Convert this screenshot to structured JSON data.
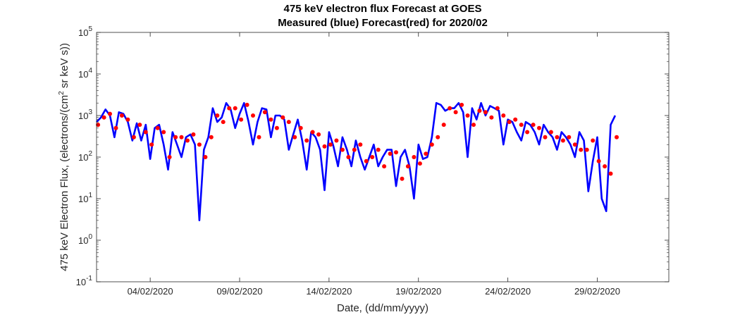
{
  "chart_data": {
    "type": "line",
    "title": "475 keV electron flux Forecast at GOES",
    "subtitle": "Measured (blue) Forecast(red) for 2020/02",
    "xlabel": "Date, (dd/mm/yyyy)",
    "ylabel_main": "475 keV Electron Flux, (electrons/(cm",
    "ylabel_sup": "2",
    "ylabel_tail": " sr keV s))",
    "yscale": "log",
    "ylim": [
      0.1,
      100000
    ],
    "xlim": [
      "2020-02-01",
      "2020-03-04"
    ],
    "x_ticks": [
      "04/02/2020",
      "09/02/2020",
      "14/02/2020",
      "19/02/2020",
      "24/02/2020",
      "29/02/2020"
    ],
    "y_ticks": [
      {
        "base": "10",
        "exp": "-1"
      },
      {
        "base": "10",
        "exp": "0"
      },
      {
        "base": "10",
        "exp": "1"
      },
      {
        "base": "10",
        "exp": "2"
      },
      {
        "base": "10",
        "exp": "3"
      },
      {
        "base": "10",
        "exp": "4"
      },
      {
        "base": "10",
        "exp": "5"
      }
    ],
    "grid": false,
    "series": [
      {
        "color": "#0000ff",
        "style": "line",
        "x": [
          "2020-02-01 00:00",
          "2020-02-01 06:00",
          "2020-02-01 12:00",
          "2020-02-01 18:00",
          "2020-02-02 00:00",
          "2020-02-02 06:00",
          "2020-02-02 12:00",
          "2020-02-02 18:00",
          "2020-02-03 00:00",
          "2020-02-03 06:00",
          "2020-02-03 12:00",
          "2020-02-03 18:00",
          "2020-02-04 00:00",
          "2020-02-04 06:00",
          "2020-02-04 12:00",
          "2020-02-04 18:00",
          "2020-02-05 00:00",
          "2020-02-05 06:00",
          "2020-02-05 12:00",
          "2020-02-05 18:00",
          "2020-02-06 00:00",
          "2020-02-06 06:00",
          "2020-02-06 12:00",
          "2020-02-06 18:00",
          "2020-02-07 00:00",
          "2020-02-07 06:00",
          "2020-02-07 12:00",
          "2020-02-07 18:00",
          "2020-02-08 00:00",
          "2020-02-08 06:00",
          "2020-02-08 12:00",
          "2020-02-08 18:00",
          "2020-02-09 00:00",
          "2020-02-09 06:00",
          "2020-02-09 12:00",
          "2020-02-09 18:00",
          "2020-02-10 00:00",
          "2020-02-10 06:00",
          "2020-02-10 12:00",
          "2020-02-10 18:00",
          "2020-02-11 00:00",
          "2020-02-11 06:00",
          "2020-02-11 12:00",
          "2020-02-11 18:00",
          "2020-02-12 00:00",
          "2020-02-12 06:00",
          "2020-02-12 12:00",
          "2020-02-12 18:00",
          "2020-02-13 00:00",
          "2020-02-13 06:00",
          "2020-02-13 12:00",
          "2020-02-13 18:00",
          "2020-02-14 00:00",
          "2020-02-14 06:00",
          "2020-02-14 12:00",
          "2020-02-14 18:00",
          "2020-02-15 00:00",
          "2020-02-15 06:00",
          "2020-02-15 12:00",
          "2020-02-15 18:00",
          "2020-02-16 00:00",
          "2020-02-16 06:00",
          "2020-02-16 12:00",
          "2020-02-16 18:00",
          "2020-02-17 00:00",
          "2020-02-17 06:00",
          "2020-02-17 12:00",
          "2020-02-17 18:00",
          "2020-02-18 00:00",
          "2020-02-18 06:00",
          "2020-02-18 12:00",
          "2020-02-18 18:00",
          "2020-02-19 00:00",
          "2020-02-19 06:00",
          "2020-02-19 12:00",
          "2020-02-19 18:00",
          "2020-02-20 00:00",
          "2020-02-20 06:00",
          "2020-02-20 12:00",
          "2020-02-20 18:00",
          "2020-02-21 00:00",
          "2020-02-21 06:00",
          "2020-02-21 12:00",
          "2020-02-21 18:00",
          "2020-02-22 00:00",
          "2020-02-22 06:00",
          "2020-02-22 12:00",
          "2020-02-22 18:00",
          "2020-02-23 00:00",
          "2020-02-23 06:00",
          "2020-02-23 12:00",
          "2020-02-23 18:00",
          "2020-02-24 00:00",
          "2020-02-24 06:00",
          "2020-02-24 12:00",
          "2020-02-24 18:00",
          "2020-02-25 00:00",
          "2020-02-25 06:00",
          "2020-02-25 12:00",
          "2020-02-25 18:00",
          "2020-02-26 00:00",
          "2020-02-26 06:00",
          "2020-02-26 12:00",
          "2020-02-26 18:00",
          "2020-02-27 00:00",
          "2020-02-27 06:00",
          "2020-02-27 12:00",
          "2020-02-27 18:00",
          "2020-02-28 00:00",
          "2020-02-28 06:00",
          "2020-02-28 12:00",
          "2020-02-28 18:00",
          "2020-02-29 00:00",
          "2020-02-29 06:00",
          "2020-02-29 12:00",
          "2020-02-29 18:00",
          "2020-03-01 00:00"
        ],
        "values": [
          700,
          900,
          1400,
          1000,
          300,
          1200,
          1100,
          700,
          250,
          650,
          250,
          600,
          90,
          500,
          600,
          200,
          50,
          400,
          200,
          100,
          300,
          350,
          200,
          3,
          150,
          300,
          1500,
          700,
          900,
          2000,
          1400,
          500,
          1100,
          2000,
          700,
          200,
          700,
          1500,
          1400,
          300,
          1000,
          1000,
          800,
          150,
          350,
          800,
          250,
          50,
          400,
          300,
          150,
          16,
          400,
          180,
          60,
          300,
          150,
          60,
          250,
          100,
          50,
          100,
          200,
          60,
          100,
          150,
          150,
          20,
          100,
          150,
          60,
          10,
          200,
          90,
          100,
          300,
          2000,
          1800,
          1300,
          1500,
          1500,
          2000,
          1200,
          100,
          1500,
          800,
          2000,
          1000,
          1700,
          1500,
          1300,
          200,
          800,
          700,
          400,
          250,
          700,
          600,
          400,
          200,
          600,
          400,
          300,
          150,
          400,
          300,
          200,
          100,
          400,
          250,
          15,
          80,
          300,
          10,
          5,
          600,
          1000
        ]
      },
      {
        "color": "#ff0000",
        "style": "markers",
        "x": [
          "2020-02-01 02:00",
          "2020-02-01 10:00",
          "2020-02-01 18:00",
          "2020-02-02 02:00",
          "2020-02-02 10:00",
          "2020-02-02 18:00",
          "2020-02-03 02:00",
          "2020-02-03 10:00",
          "2020-02-03 18:00",
          "2020-02-04 02:00",
          "2020-02-04 10:00",
          "2020-02-04 18:00",
          "2020-02-05 02:00",
          "2020-02-05 10:00",
          "2020-02-05 18:00",
          "2020-02-06 02:00",
          "2020-02-06 10:00",
          "2020-02-06 18:00",
          "2020-02-07 02:00",
          "2020-02-07 10:00",
          "2020-02-07 18:00",
          "2020-02-08 02:00",
          "2020-02-08 10:00",
          "2020-02-08 18:00",
          "2020-02-09 02:00",
          "2020-02-09 10:00",
          "2020-02-09 18:00",
          "2020-02-10 02:00",
          "2020-02-10 10:00",
          "2020-02-10 18:00",
          "2020-02-11 02:00",
          "2020-02-11 10:00",
          "2020-02-11 18:00",
          "2020-02-12 02:00",
          "2020-02-12 10:00",
          "2020-02-12 18:00",
          "2020-02-13 02:00",
          "2020-02-13 10:00",
          "2020-02-13 18:00",
          "2020-02-14 02:00",
          "2020-02-14 10:00",
          "2020-02-14 18:00",
          "2020-02-15 02:00",
          "2020-02-15 10:00",
          "2020-02-15 18:00",
          "2020-02-16 02:00",
          "2020-02-16 10:00",
          "2020-02-16 18:00",
          "2020-02-17 02:00",
          "2020-02-17 10:00",
          "2020-02-17 18:00",
          "2020-02-18 02:00",
          "2020-02-18 10:00",
          "2020-02-18 18:00",
          "2020-02-19 02:00",
          "2020-02-19 10:00",
          "2020-02-19 18:00",
          "2020-02-20 02:00",
          "2020-02-20 10:00",
          "2020-02-20 18:00",
          "2020-02-21 02:00",
          "2020-02-21 10:00",
          "2020-02-21 18:00",
          "2020-02-22 02:00",
          "2020-02-22 10:00",
          "2020-02-22 18:00",
          "2020-02-23 02:00",
          "2020-02-23 10:00",
          "2020-02-23 18:00",
          "2020-02-24 02:00",
          "2020-02-24 10:00",
          "2020-02-24 18:00",
          "2020-02-25 02:00",
          "2020-02-25 10:00",
          "2020-02-25 18:00",
          "2020-02-26 02:00",
          "2020-02-26 10:00",
          "2020-02-26 18:00",
          "2020-02-27 02:00",
          "2020-02-27 10:00",
          "2020-02-27 18:00",
          "2020-02-28 02:00",
          "2020-02-28 10:00",
          "2020-02-28 18:00",
          "2020-02-29 02:00",
          "2020-02-29 10:00",
          "2020-02-29 18:00",
          "2020-03-01 02:00"
        ],
        "values": [
          600,
          900,
          1100,
          500,
          1000,
          800,
          300,
          600,
          400,
          200,
          500,
          400,
          100,
          300,
          300,
          250,
          350,
          200,
          100,
          300,
          1000,
          700,
          1500,
          1500,
          800,
          1800,
          1000,
          300,
          1200,
          800,
          500,
          900,
          700,
          300,
          500,
          250,
          400,
          350,
          180,
          200,
          250,
          150,
          100,
          150,
          200,
          80,
          100,
          150,
          60,
          120,
          130,
          30,
          60,
          100,
          70,
          120,
          200,
          300,
          600,
          1500,
          1200,
          1800,
          1000,
          600,
          1300,
          1200,
          900,
          1500,
          1000,
          700,
          800,
          600,
          400,
          600,
          500,
          300,
          400,
          300,
          250,
          300,
          200,
          150,
          150,
          250,
          80,
          60,
          40,
          300
        ]
      }
    ]
  }
}
